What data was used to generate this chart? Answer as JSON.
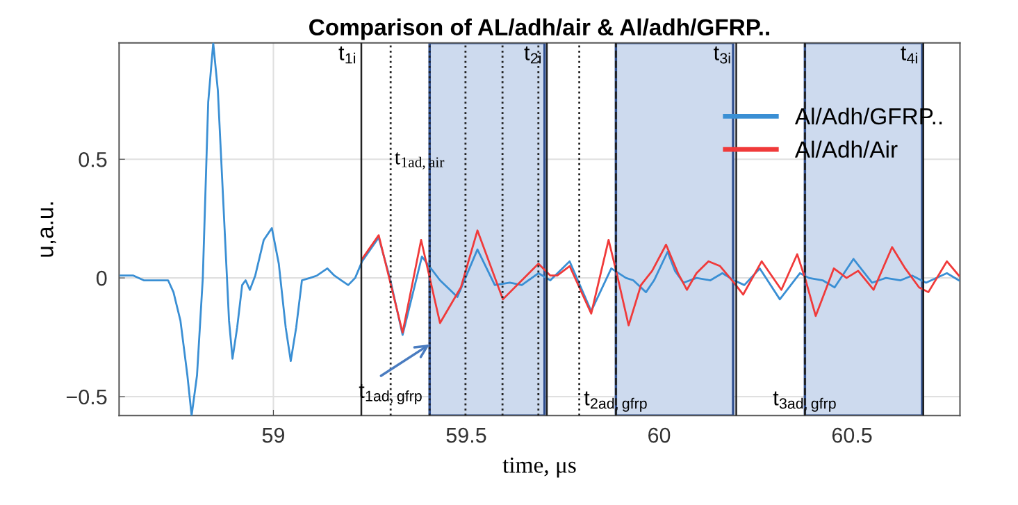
{
  "chart_data": {
    "type": "line",
    "title": "Comparison of AL/adh/air & Al/adh/GFRP..",
    "xlabel": "time, μs",
    "ylabel": "u,a.u.",
    "xlim": [
      58.6,
      60.78
    ],
    "ylim": [
      -0.58,
      0.99
    ],
    "xticks": [
      59,
      59.5,
      60,
      60.5
    ],
    "yticks": [
      {
        "value": -0.5,
        "label": "−0.5"
      },
      0,
      0.5
    ],
    "grid": true,
    "legend": "top right",
    "marker": "none",
    "line_style": "solid",
    "series": [
      {
        "name": "Al/Adh/GFRP..",
        "color": "#3a8fd4",
        "x": [
          58.604,
          58.637,
          58.664,
          58.682,
          58.709,
          58.727,
          58.741,
          58.759,
          58.777,
          58.788,
          58.802,
          58.817,
          58.831,
          58.844,
          58.856,
          58.871,
          58.885,
          58.894,
          58.906,
          58.919,
          58.928,
          58.939,
          58.953,
          58.975,
          58.996,
          59.014,
          59.032,
          59.045,
          59.059,
          59.074,
          59.095,
          59.113,
          59.14,
          59.158,
          59.176,
          59.194,
          59.212,
          59.23,
          59.273,
          59.302,
          59.335,
          59.385,
          59.432,
          59.477,
          59.529,
          59.574,
          59.613,
          59.644,
          59.687,
          59.718,
          59.768,
          59.824,
          59.876,
          59.914,
          59.933,
          59.966,
          59.987,
          60.022,
          60.041,
          60.063,
          60.097,
          60.133,
          60.164,
          60.194,
          60.221,
          60.261,
          60.313,
          60.365,
          60.388,
          60.424,
          60.455,
          60.504,
          60.552,
          60.588,
          60.626,
          60.656,
          60.692,
          60.746,
          60.777
        ],
        "values": [
          0.01,
          0.01,
          -0.01,
          -0.01,
          -0.01,
          -0.01,
          -0.06,
          -0.18,
          -0.41,
          -0.58,
          -0.41,
          0.0,
          0.74,
          0.99,
          0.79,
          0.29,
          -0.18,
          -0.34,
          -0.21,
          -0.03,
          -0.01,
          -0.05,
          0.01,
          0.16,
          0.21,
          0.06,
          -0.21,
          -0.35,
          -0.21,
          -0.01,
          0.0,
          0.01,
          0.04,
          0.01,
          -0.01,
          -0.03,
          0.0,
          0.07,
          0.17,
          0.0,
          -0.24,
          0.09,
          -0.01,
          -0.08,
          0.12,
          -0.03,
          -0.02,
          -0.03,
          0.02,
          -0.01,
          0.07,
          -0.14,
          0.04,
          0.0,
          -0.01,
          -0.06,
          -0.01,
          0.11,
          0.03,
          -0.02,
          0.0,
          -0.01,
          0.02,
          -0.01,
          -0.03,
          0.04,
          -0.09,
          0.02,
          0.0,
          -0.01,
          -0.04,
          0.08,
          -0.02,
          0.0,
          -0.01,
          0.01,
          -0.02,
          0.02,
          -0.01
        ]
      },
      {
        "name": "Al/Adh/Air",
        "color": "#f03a3a",
        "x": [
          59.23,
          59.273,
          59.335,
          59.383,
          59.432,
          59.486,
          59.529,
          59.595,
          59.687,
          59.718,
          59.736,
          59.768,
          59.824,
          59.869,
          59.89,
          59.921,
          59.953,
          59.982,
          60.018,
          60.049,
          60.072,
          60.097,
          60.128,
          60.158,
          60.194,
          60.218,
          60.266,
          60.317,
          60.358,
          60.38,
          60.406,
          60.453,
          60.486,
          60.516,
          60.556,
          60.604,
          60.638,
          60.674,
          60.698,
          60.746,
          60.777
        ],
        "values": [
          0.08,
          0.18,
          -0.23,
          0.16,
          -0.19,
          -0.04,
          0.2,
          -0.09,
          0.06,
          0.01,
          0.01,
          0.05,
          -0.15,
          0.16,
          0.02,
          -0.2,
          -0.03,
          0.03,
          0.14,
          0.02,
          -0.05,
          0.02,
          0.07,
          0.05,
          -0.02,
          -0.07,
          0.07,
          -0.05,
          0.1,
          -0.01,
          -0.16,
          0.04,
          0.0,
          0.03,
          -0.05,
          0.13,
          0.04,
          -0.04,
          -0.06,
          0.07,
          0.01
        ]
      }
    ],
    "ref_lines": [
      {
        "axis": "x",
        "value": 59.228,
        "label": "t$_{1i}$",
        "line_style": "solid",
        "color": "#222222"
      },
      {
        "axis": "x",
        "value": 59.709,
        "label": "t$_{2i}$",
        "line_style": "solid",
        "color": "#222222"
      },
      {
        "axis": "x",
        "value": 60.2,
        "label": "t$_{3i}$",
        "line_style": "solid",
        "color": "#222222"
      },
      {
        "axis": "x",
        "value": 60.685,
        "label": "t$_{4i}$",
        "line_style": "solid",
        "color": "#222222"
      },
      {
        "axis": "x",
        "value": 59.304,
        "label": "t$_{1ad,air}$",
        "line_style": "dotted",
        "color": "#222222"
      },
      {
        "axis": "x",
        "value": 59.405,
        "line_style": "dotted",
        "color": "#222222"
      },
      {
        "axis": "x",
        "value": 59.498,
        "line_style": "dotted",
        "color": "#222222"
      },
      {
        "axis": "x",
        "value": 59.594,
        "line_style": "dotted",
        "color": "#222222"
      },
      {
        "axis": "x",
        "value": 59.687,
        "line_style": "dotted",
        "color": "#222222"
      },
      {
        "axis": "x",
        "value": 59.793,
        "line_style": "dotted",
        "color": "#222222"
      },
      {
        "axis": "x",
        "value": 59.888,
        "label": "t$_{2ad,gfrp}$",
        "line_style": "dashed",
        "color": "#222222"
      },
      {
        "axis": "x",
        "value": 60.378,
        "label": "t$_{3ad,gfrp}$",
        "line_style": "dashed",
        "color": "#222222"
      }
    ],
    "bands": [
      {
        "axis": "x",
        "from": 59.405,
        "to": 59.703,
        "color": "#cddaee"
      },
      {
        "axis": "x",
        "from": 59.888,
        "to": 60.192,
        "color": "#cddaee"
      },
      {
        "axis": "x",
        "from": 60.378,
        "to": 60.682,
        "color": "#cddaee"
      }
    ],
    "annotations": [
      {
        "text": "t$_{1ad,gfrp}$",
        "x": 59.405,
        "y": -0.28
      }
    ]
  }
}
